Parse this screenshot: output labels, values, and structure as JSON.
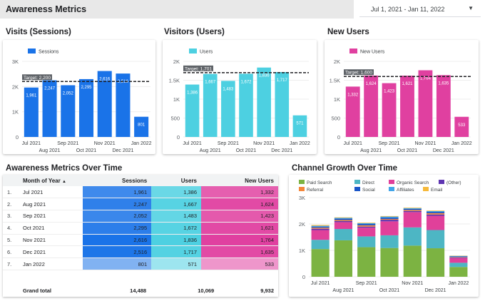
{
  "header": {
    "title": "Awareness Metrics",
    "date_range": "Jul 1, 2021 - Jan 11, 2022"
  },
  "colors": {
    "sessions": "#1a73e8",
    "users": "#4dd0e1",
    "new_users": "#e040a0"
  },
  "charts": {
    "visits": {
      "title": "Visits (Sessions)",
      "legend": "Sessions",
      "ylim": [
        0,
        3000
      ],
      "yticks": [
        "0",
        "1K",
        "2K",
        "3K"
      ],
      "target_label": "Target: 2,200",
      "target": 2200,
      "values": [
        1961,
        2247,
        2052,
        2295,
        2616,
        2516,
        801
      ],
      "labels": [
        "1,961",
        "2,247",
        "2,052",
        "2,295",
        "2,616",
        "2,516",
        "801"
      ]
    },
    "visitors": {
      "title": "Visitors (Users)",
      "legend": "Users",
      "ylim": [
        0,
        2000
      ],
      "yticks": [
        "0",
        "500",
        "1K",
        "1.5K",
        "2K"
      ],
      "target_label": "Target: 1,701",
      "target": 1701,
      "values": [
        1386,
        1667,
        1483,
        1672,
        1836,
        1717,
        571
      ],
      "labels": [
        "1,386",
        "1,667",
        "1,483",
        "1,672",
        "1,836",
        "1,717",
        "571"
      ]
    },
    "new_users": {
      "title": "New Users",
      "legend": "New Users",
      "ylim": [
        0,
        2000
      ],
      "yticks": [
        "0",
        "500",
        "1K",
        "1.5K",
        "2K"
      ],
      "target_label": "Target: 1,600",
      "target": 1600,
      "values": [
        1332,
        1624,
        1423,
        1621,
        1764,
        1635,
        533
      ],
      "labels": [
        "1,332",
        "1,624",
        "1,423",
        "1,621",
        "1,764",
        "1,635",
        "533"
      ]
    },
    "months_top": [
      "Jul 2021",
      "Sep 2021",
      "Nov 2021",
      "Jan 2022"
    ],
    "months_bottom": [
      "Aug 2021",
      "Oct 2021",
      "Dec 2021"
    ]
  },
  "table": {
    "title": "Awareness Metrics Over Time",
    "headers": {
      "month": "Month of Year",
      "sessions": "Sessions",
      "users": "Users",
      "new_users": "New Users"
    },
    "sort_indicator": "▲",
    "rows": [
      {
        "idx": "1.",
        "month": "Jul 2021",
        "sessions": "1,961",
        "users": "1,386",
        "new_users": "1,332"
      },
      {
        "idx": "2.",
        "month": "Aug 2021",
        "sessions": "2,247",
        "users": "1,667",
        "new_users": "1,624"
      },
      {
        "idx": "3.",
        "month": "Sep 2021",
        "sessions": "2,052",
        "users": "1,483",
        "new_users": "1,423"
      },
      {
        "idx": "4.",
        "month": "Oct 2021",
        "sessions": "2,295",
        "users": "1,672",
        "new_users": "1,621"
      },
      {
        "idx": "5.",
        "month": "Nov 2021",
        "sessions": "2,616",
        "users": "1,836",
        "new_users": "1,764"
      },
      {
        "idx": "6.",
        "month": "Dec 2021",
        "sessions": "2,516",
        "users": "1,717",
        "new_users": "1,635"
      },
      {
        "idx": "7.",
        "month": "Jan 2022",
        "sessions": "801",
        "users": "571",
        "new_users": "533"
      }
    ],
    "total": {
      "label": "Grand total",
      "sessions": "14,488",
      "users": "10,069",
      "new_users": "9,932"
    }
  },
  "chart_data": {
    "type": "bar",
    "stacked": true,
    "title": "Channel Growth Over Time",
    "categories": [
      "Jul 2021",
      "Aug 2021",
      "Sep 2021",
      "Oct 2021",
      "Nov 2021",
      "Dec 2021",
      "Jan 2022"
    ],
    "ylim": [
      0,
      3000
    ],
    "yticks": [
      "0",
      "1K",
      "2K",
      "3K"
    ],
    "series": [
      {
        "name": "Paid Search",
        "color": "#7cb342",
        "values": [
          1050,
          1380,
          1120,
          1090,
          1180,
          1080,
          370
        ]
      },
      {
        "name": "Direct",
        "color": "#4db6c4",
        "values": [
          350,
          430,
          410,
          480,
          690,
          690,
          160
        ]
      },
      {
        "name": "Organic Search",
        "color": "#e0409a",
        "values": [
          370,
          260,
          330,
          530,
          580,
          540,
          180
        ]
      },
      {
        "name": "(Other)",
        "color": "#5e35b1",
        "values": [
          50,
          40,
          40,
          60,
          40,
          50,
          20
        ]
      },
      {
        "name": "Referral",
        "color": "#f4863a",
        "values": [
          40,
          40,
          50,
          30,
          40,
          50,
          20
        ]
      },
      {
        "name": "Social",
        "color": "#1a56c8",
        "values": [
          40,
          50,
          50,
          50,
          40,
          50,
          20
        ]
      },
      {
        "name": "Affiliates",
        "color": "#42a5e8",
        "values": [
          30,
          30,
          30,
          40,
          30,
          30,
          20
        ]
      },
      {
        "name": "Email",
        "color": "#f6b93b",
        "values": [
          30,
          20,
          20,
          20,
          20,
          20,
          10
        ]
      }
    ],
    "months_top": [
      "Jul 2021",
      "Sep 2021",
      "Nov 2021",
      "Jan 2022"
    ],
    "months_bottom": [
      "Aug 2021",
      "Oct 2021",
      "Dec 2021"
    ]
  }
}
